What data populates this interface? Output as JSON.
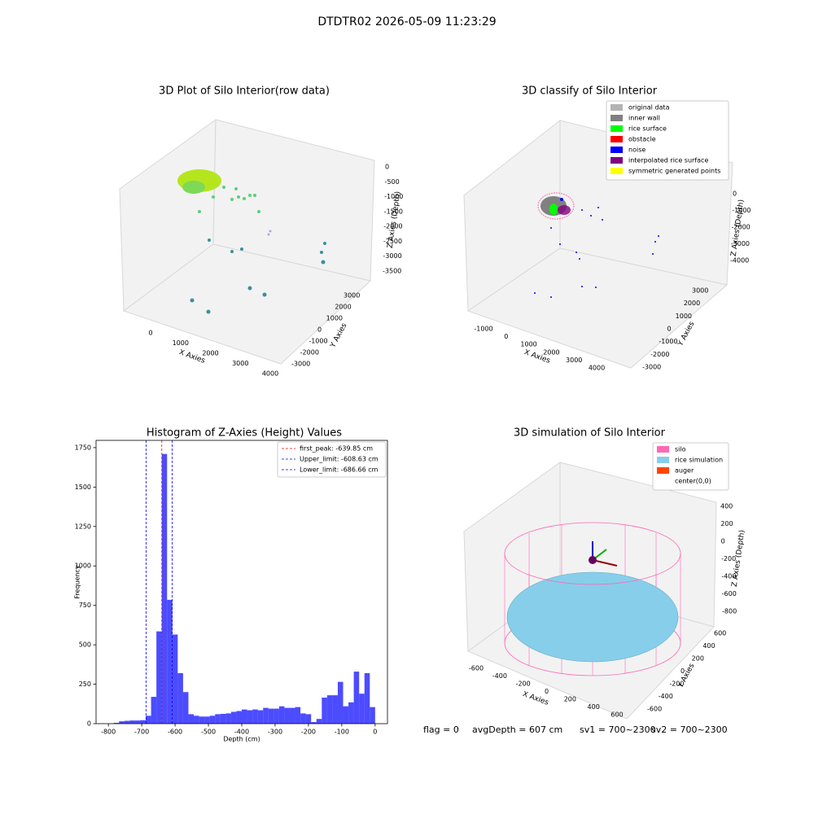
{
  "suptitle": "DTDTR02 2026-05-09 11:23:29",
  "chart_data": [
    {
      "type": "scatter3d",
      "title": "3D Plot of Silo Interior(row data)",
      "xlabel": "X Axies",
      "ylabel": "Y Axies",
      "zlabel": "Z Axies (Depth)",
      "xticks": [
        0,
        1000,
        2000,
        3000,
        4000
      ],
      "yticks": [
        -3000,
        -2000,
        -1000,
        0,
        1000,
        2000,
        3000
      ],
      "zticks": [
        0,
        -500,
        -1000,
        -1500,
        -2000,
        -2500,
        -3000,
        -3500
      ]
    },
    {
      "type": "scatter3d",
      "title": "3D classify of Silo Interior",
      "xlabel": "X Axies",
      "ylabel": "Y Axies",
      "zlabel": "Z Axies (Depth)",
      "xticks": [
        -1000,
        0,
        1000,
        2000,
        3000,
        4000
      ],
      "yticks": [
        -3000,
        -2000,
        -1000,
        0,
        1000,
        2000,
        3000
      ],
      "zticks": [
        0,
        -1000,
        -2000,
        -3000,
        -4000
      ],
      "legend": [
        {
          "name": "original data",
          "color": "#b3b3b3"
        },
        {
          "name": "inner wall",
          "color": "#808080"
        },
        {
          "name": "rice surface",
          "color": "#00ff00"
        },
        {
          "name": "obstacle",
          "color": "#ff0000"
        },
        {
          "name": "noise",
          "color": "#0000ff"
        },
        {
          "name": "interpolated rice surface",
          "color": "#800080"
        },
        {
          "name": "symmetric generated points",
          "color": "#ffff00"
        }
      ]
    },
    {
      "type": "histogram",
      "title": "Histogram of Z-Axies (Height) Values",
      "xlabel": "Depth (cm)",
      "ylabel": "Frequency",
      "color": "#0000ff",
      "bins": [
        -784,
        -768,
        -752,
        -736,
        -720,
        -704,
        -688,
        -672,
        -656,
        -640,
        -624,
        -608,
        -592,
        -576,
        -560,
        -544,
        -528,
        -512,
        -496,
        -480,
        -464,
        -448,
        -432,
        -416,
        -400,
        -384,
        -368,
        -352,
        -336,
        -320,
        -304,
        -288,
        -272,
        -256,
        -240,
        -224,
        -208,
        -192,
        -176,
        -160,
        -144,
        -128,
        -112,
        -96,
        -80,
        -64,
        -48,
        -32,
        -16,
        0
      ],
      "counts": [
        5,
        15,
        18,
        20,
        20,
        22,
        50,
        170,
        585,
        1710,
        785,
        565,
        320,
        200,
        60,
        50,
        45,
        45,
        50,
        60,
        62,
        65,
        75,
        80,
        90,
        85,
        90,
        85,
        100,
        95,
        95,
        110,
        100,
        100,
        105,
        65,
        60,
        10,
        30,
        165,
        180,
        180,
        265,
        110,
        135,
        330,
        190,
        320,
        105
      ],
      "xlim": [
        -837,
        37
      ],
      "ylim": [
        0,
        1796
      ],
      "xticks": [
        -800,
        -700,
        -600,
        -500,
        -400,
        -300,
        -200,
        -100,
        0
      ],
      "yticks": [
        0,
        250,
        500,
        750,
        1000,
        1250,
        1500,
        1750
      ],
      "vlines": [
        {
          "label": "first_peak: -639.85 cm",
          "value": -639.85,
          "color": "#ff0000"
        },
        {
          "label": "Upper_limit: -608.63 cm",
          "value": -608.63,
          "color": "#0000ff"
        },
        {
          "label": "Lower_limit: -686.66 cm",
          "value": -686.66,
          "color": "#0000ff"
        }
      ]
    },
    {
      "type": "wireframe3d",
      "title": "3D simulation of Silo Interior",
      "xlabel": "X Axies",
      "ylabel": "Y Axies",
      "zlabel": "Z Axies (Depth)",
      "xticks": [
        -600,
        -400,
        -200,
        0,
        200,
        400,
        600
      ],
      "yticks": [
        -600,
        -400,
        -200,
        0,
        200,
        400,
        600
      ],
      "zticks": [
        400,
        200,
        0,
        -200,
        -400,
        -600,
        -800
      ],
      "legend": [
        {
          "name": "silo",
          "color": "#ff69b4"
        },
        {
          "name": "rice simulation",
          "color": "#87ceeb"
        },
        {
          "name": "auger",
          "color": "#ff4500"
        },
        {
          "name": "center(0,0)",
          "color": "#ffffff"
        }
      ]
    }
  ],
  "footer": [
    "flag = 0",
    "avgDepth = 607 cm",
    "sv1 = 700~2300",
    "sv2 = 700~2300"
  ]
}
